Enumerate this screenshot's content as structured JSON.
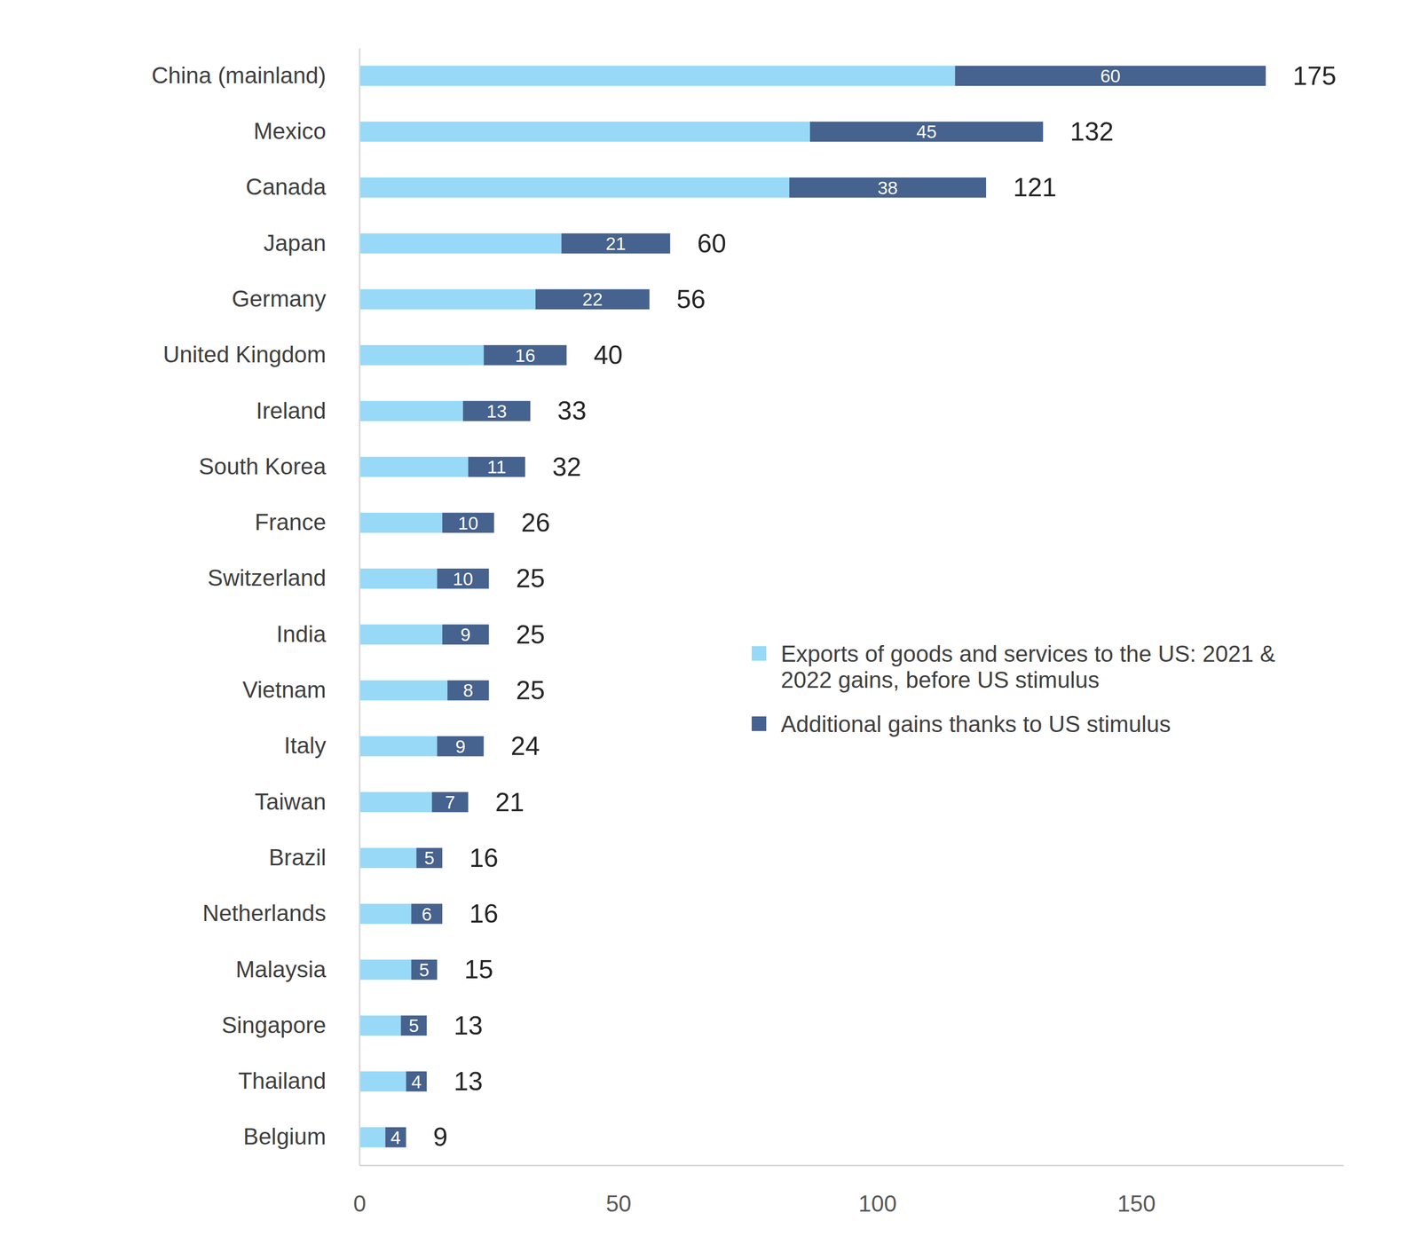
{
  "chart_data": {
    "type": "bar",
    "orientation": "horizontal",
    "stacked": true,
    "legend": "right",
    "grid": false,
    "categories": [
      "China (mainland)",
      "Mexico",
      "Canada",
      "Japan",
      "Germany",
      "United Kingdom",
      "Ireland",
      "South Korea",
      "France",
      "Switzerland",
      "India",
      "Vietnam",
      "Italy",
      "Taiwan",
      "Brazil",
      "Netherlands",
      "Malaysia",
      "Singapore",
      "Thailand",
      "Belgium"
    ],
    "series": [
      {
        "name": "Exports of goods and services to the US: 2021 & 2022 gains, before US stimulus",
        "color": "#97d9f7",
        "values": [
          115,
          87,
          83,
          39,
          34,
          24,
          20,
          21,
          16,
          15,
          16,
          17,
          15,
          14,
          11,
          10,
          10,
          8,
          9,
          5
        ]
      },
      {
        "name": "Additional gains thanks to US stimulus",
        "color": "#46628e",
        "data_labels": true,
        "values": [
          60,
          45,
          38,
          21,
          22,
          16,
          13,
          11,
          10,
          10,
          9,
          8,
          9,
          7,
          5,
          6,
          5,
          5,
          4,
          4
        ]
      }
    ],
    "totals": [
      175,
      132,
      121,
      60,
      56,
      40,
      33,
      32,
      26,
      25,
      25,
      25,
      24,
      21,
      16,
      16,
      15,
      13,
      13,
      9
    ],
    "xlim": [
      0,
      190
    ],
    "xticks": [
      0,
      50,
      100,
      150
    ]
  }
}
